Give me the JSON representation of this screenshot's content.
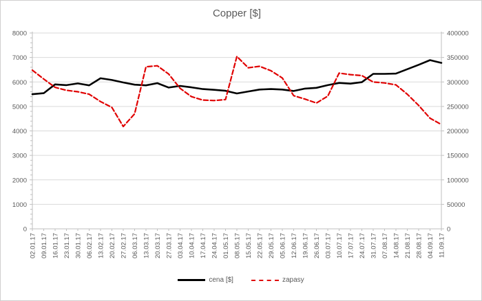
{
  "chart_data": {
    "type": "line",
    "title": "Copper [$]",
    "categories": [
      "02.01.17",
      "09.01.17",
      "16.01.17",
      "23.01.17",
      "30.01.17",
      "06.02.17",
      "13.02.17",
      "20.02.17",
      "27.02.17",
      "06.03.17",
      "13.03.17",
      "20.03.17",
      "27.03.17",
      "03.04.17",
      "10.04.17",
      "17.04.17",
      "24.04.17",
      "01.05.17",
      "08.05.17",
      "15.05.17",
      "22.05.17",
      "29.05.17",
      "05.06.17",
      "12.06.17",
      "19.06.17",
      "26.06.17",
      "03.07.17",
      "10.07.17",
      "17.07.17",
      "24.07.17",
      "31.07.17",
      "07.08.17",
      "14.08.17",
      "21.08.17",
      "28.08.17",
      "04.09.17",
      "11.09.17"
    ],
    "series": [
      {
        "name": "cena [$]",
        "axis": "left",
        "color": "#000000",
        "style": "solid",
        "values": [
          5500,
          5540,
          5900,
          5870,
          5940,
          5860,
          6150,
          6080,
          5980,
          5890,
          5860,
          5950,
          5770,
          5840,
          5780,
          5710,
          5680,
          5640,
          5530,
          5610,
          5690,
          5710,
          5690,
          5630,
          5730,
          5760,
          5870,
          5960,
          5930,
          5990,
          6330,
          6330,
          6340,
          6520,
          6700,
          6890,
          6780
        ]
      },
      {
        "name": "zapasy",
        "axis": "right",
        "color": "#e00000",
        "style": "dashed",
        "values": [
          324000,
          306000,
          289000,
          283000,
          280000,
          275000,
          260000,
          248000,
          209000,
          235000,
          331000,
          333000,
          316000,
          287000,
          270000,
          263000,
          262000,
          264000,
          352000,
          329000,
          332000,
          323000,
          308000,
          272000,
          265000,
          257000,
          271000,
          318000,
          315000,
          313000,
          300000,
          298000,
          294000,
          275000,
          252000,
          226000,
          213000
        ]
      }
    ],
    "y_axis_left": {
      "min": 0,
      "max": 8000,
      "step": 1000,
      "ticks": [
        "0",
        "1000",
        "2000",
        "3000",
        "4000",
        "5000",
        "6000",
        "7000",
        "8000"
      ]
    },
    "y_axis_right": {
      "min": 0,
      "max": 400000,
      "step": 50000,
      "ticks": [
        "0",
        "50000",
        "100000",
        "150000",
        "200000",
        "250000",
        "300000",
        "350000",
        "400000"
      ]
    },
    "grid": true,
    "legend_position": "bottom",
    "colors": {
      "gridline": "#d9d9d9",
      "axis_line": "#bfbfbf",
      "label_text": "#595959",
      "title_text": "#595959",
      "border": "#d0cece"
    }
  }
}
